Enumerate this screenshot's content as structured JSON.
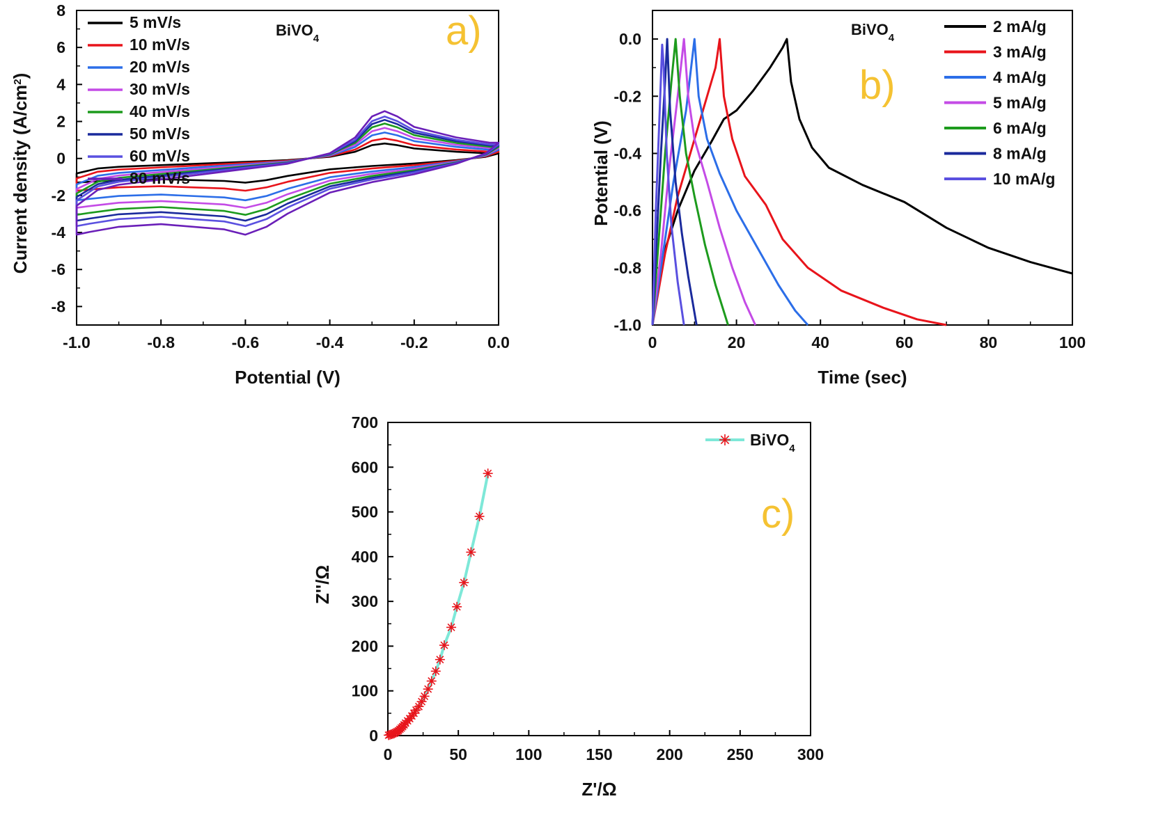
{
  "chart_data": [
    {
      "panel": "a)",
      "type": "line",
      "material_label": "BiVO",
      "material_sub": "4",
      "xlabel": "Potential (V)",
      "ylabel": "Current density (A/cm",
      "ylabel_sup": "2",
      "ylabel_end": ")",
      "xlim": [
        -1.0,
        0.0
      ],
      "ylim": [
        -9,
        8
      ],
      "xticks": [
        "-1.0",
        "-0.8",
        "-0.6",
        "-0.4",
        "-0.2",
        "0.0"
      ],
      "yticks": [
        "-8",
        "-6",
        "-4",
        "-2",
        "0",
        "2",
        "4",
        "6",
        "8"
      ],
      "legend": "top-left",
      "series": [
        {
          "name": "5 mV/s",
          "color": "#000000",
          "scale": 0.45
        },
        {
          "name": "10 mV/s",
          "color": "#e8141b",
          "scale": 0.6
        },
        {
          "name": "20 mV/s",
          "color": "#2c6ee8",
          "scale": 0.78
        },
        {
          "name": "30 mV/s",
          "color": "#c44be6",
          "scale": 0.92
        },
        {
          "name": "40 mV/s",
          "color": "#1d9b1d",
          "scale": 1.05
        },
        {
          "name": "50 mV/s",
          "color": "#1a2a9c",
          "scale": 1.16
        },
        {
          "name": "60 mV/s",
          "color": "#5a50e0",
          "scale": 1.26
        },
        {
          "name": "80 mV/s",
          "color": "#6a1fb8",
          "scale": 1.42
        }
      ],
      "template_anodic": [
        [
          -1.0,
          -1.8
        ],
        [
          -0.95,
          -1.2
        ],
        [
          -0.9,
          -1.0
        ],
        [
          -0.8,
          -0.8
        ],
        [
          -0.7,
          -0.6
        ],
        [
          -0.6,
          -0.4
        ],
        [
          -0.5,
          -0.2
        ],
        [
          -0.4,
          0.2
        ],
        [
          -0.34,
          0.8
        ],
        [
          -0.3,
          1.6
        ],
        [
          -0.27,
          1.8
        ],
        [
          -0.24,
          1.6
        ],
        [
          -0.2,
          1.2
        ],
        [
          -0.1,
          0.8
        ],
        [
          -0.02,
          0.6
        ],
        [
          0.0,
          0.6
        ]
      ],
      "template_cathodic": [
        [
          0.0,
          0.6
        ],
        [
          -0.03,
          0.2
        ],
        [
          -0.1,
          -0.2
        ],
        [
          -0.2,
          -0.6
        ],
        [
          -0.3,
          -0.9
        ],
        [
          -0.4,
          -1.3
        ],
        [
          -0.5,
          -2.1
        ],
        [
          -0.55,
          -2.6
        ],
        [
          -0.6,
          -2.9
        ],
        [
          -0.65,
          -2.7
        ],
        [
          -0.8,
          -2.5
        ],
        [
          -0.9,
          -2.6
        ],
        [
          -0.97,
          -2.8
        ],
        [
          -1.0,
          -2.9
        ]
      ]
    },
    {
      "panel": "b)",
      "type": "line",
      "material_label": "BiVO",
      "material_sub": "4",
      "xlabel": "Time (sec)",
      "ylabel": "Potential (V)",
      "xlim": [
        0,
        100
      ],
      "ylim": [
        -1.0,
        0.1
      ],
      "xticks": [
        "0",
        "20",
        "40",
        "60",
        "80",
        "100"
      ],
      "yticks": [
        "0.0",
        "-0.2",
        "-0.4",
        "-0.6",
        "-0.8",
        "-1.0"
      ],
      "legend": "top-right",
      "series": [
        {
          "name": "2 mA/g",
          "color": "#000000",
          "points": [
            [
              0,
              -1.0
            ],
            [
              2,
              -0.78
            ],
            [
              6,
              -0.6
            ],
            [
              10,
              -0.46
            ],
            [
              14,
              -0.36
            ],
            [
              17,
              -0.28
            ],
            [
              20,
              -0.25
            ],
            [
              24,
              -0.18
            ],
            [
              28,
              -0.1
            ],
            [
              31,
              -0.03
            ],
            [
              32,
              0.0
            ],
            [
              33,
              -0.15
            ],
            [
              35,
              -0.28
            ],
            [
              38,
              -0.38
            ],
            [
              42,
              -0.45
            ],
            [
              50,
              -0.51
            ],
            [
              60,
              -0.57
            ],
            [
              70,
              -0.66
            ],
            [
              80,
              -0.73
            ],
            [
              90,
              -0.78
            ],
            [
              100,
              -0.82
            ]
          ]
        },
        {
          "name": "3 mA/g",
          "color": "#e8141b",
          "points": [
            [
              0,
              -1.0
            ],
            [
              3,
              -0.75
            ],
            [
              6,
              -0.55
            ],
            [
              9,
              -0.4
            ],
            [
              12,
              -0.25
            ],
            [
              15,
              -0.1
            ],
            [
              16,
              0.0
            ],
            [
              17,
              -0.2
            ],
            [
              19,
              -0.35
            ],
            [
              22,
              -0.48
            ],
            [
              27,
              -0.58
            ],
            [
              31,
              -0.7
            ],
            [
              37,
              -0.8
            ],
            [
              45,
              -0.88
            ],
            [
              55,
              -0.94
            ],
            [
              63,
              -0.98
            ],
            [
              70,
              -1.0
            ]
          ]
        },
        {
          "name": "4 mA/g",
          "color": "#2c6ee8",
          "points": [
            [
              0,
              -1.0
            ],
            [
              2,
              -0.8
            ],
            [
              5,
              -0.5
            ],
            [
              8,
              -0.25
            ],
            [
              10,
              0.0
            ],
            [
              11,
              -0.2
            ],
            [
              13,
              -0.35
            ],
            [
              16,
              -0.47
            ],
            [
              20,
              -0.6
            ],
            [
              25,
              -0.73
            ],
            [
              30,
              -0.86
            ],
            [
              34,
              -0.95
            ],
            [
              37,
              -1.0
            ]
          ]
        },
        {
          "name": "5 mA/g",
          "color": "#c44be6",
          "points": [
            [
              0,
              -1.0
            ],
            [
              2,
              -0.75
            ],
            [
              4,
              -0.45
            ],
            [
              6,
              -0.2
            ],
            [
              7.5,
              0.0
            ],
            [
              8.5,
              -0.2
            ],
            [
              10,
              -0.35
            ],
            [
              13,
              -0.5
            ],
            [
              16,
              -0.66
            ],
            [
              19,
              -0.8
            ],
            [
              22,
              -0.92
            ],
            [
              24.5,
              -1.0
            ]
          ]
        },
        {
          "name": "6 mA/g",
          "color": "#1d9b1d",
          "points": [
            [
              0,
              -1.0
            ],
            [
              1.5,
              -0.7
            ],
            [
              3,
              -0.4
            ],
            [
              4.5,
              -0.15
            ],
            [
              5.5,
              0.0
            ],
            [
              6.5,
              -0.2
            ],
            [
              8,
              -0.4
            ],
            [
              10,
              -0.55
            ],
            [
              12.5,
              -0.72
            ],
            [
              15,
              -0.86
            ],
            [
              18,
              -1.0
            ]
          ]
        },
        {
          "name": "8 mA/g",
          "color": "#1a2a9c",
          "points": [
            [
              0,
              -1.0
            ],
            [
              1,
              -0.7
            ],
            [
              2,
              -0.4
            ],
            [
              3,
              -0.15
            ],
            [
              3.5,
              0.0
            ],
            [
              4.2,
              -0.25
            ],
            [
              5.5,
              -0.5
            ],
            [
              7,
              -0.68
            ],
            [
              8.5,
              -0.83
            ],
            [
              10.5,
              -1.0
            ]
          ]
        },
        {
          "name": "10 mA/g",
          "color": "#5a50e0",
          "points": [
            [
              0,
              -1.0
            ],
            [
              0.8,
              -0.6
            ],
            [
              1.6,
              -0.3
            ],
            [
              2.3,
              -0.02
            ],
            [
              2.6,
              -0.08
            ],
            [
              3.4,
              -0.4
            ],
            [
              4.5,
              -0.65
            ],
            [
              6,
              -0.85
            ],
            [
              7.5,
              -1.0
            ]
          ]
        }
      ]
    },
    {
      "panel": "c)",
      "type": "scatter",
      "xlabel": "Z'/Ω",
      "ylabel": "Z''/Ω",
      "xlim": [
        0,
        300
      ],
      "ylim": [
        0,
        700
      ],
      "xticks": [
        "0",
        "50",
        "100",
        "150",
        "200",
        "250",
        "300"
      ],
      "yticks": [
        "0",
        "100",
        "200",
        "300",
        "400",
        "500",
        "600",
        "700"
      ],
      "legend": "top-right",
      "series": [
        {
          "name": "BiVO",
          "name_sub": "4",
          "line_color": "#7ee8d8",
          "marker_color": "#e8141b",
          "points": [
            [
              0.5,
              1
            ],
            [
              1.5,
              2
            ],
            [
              2.5,
              3
            ],
            [
              3.5,
              4
            ],
            [
              4.5,
              5
            ],
            [
              5.5,
              7
            ],
            [
              6.5,
              9
            ],
            [
              7.5,
              11
            ],
            [
              8.5,
              14
            ],
            [
              9.5,
              17
            ],
            [
              10.5,
              20
            ],
            [
              11.5,
              24
            ],
            [
              12.5,
              28
            ],
            [
              14,
              33
            ],
            [
              15.5,
              38
            ],
            [
              17,
              44
            ],
            [
              18.5,
              50
            ],
            [
              20,
              57
            ],
            [
              22,
              65
            ],
            [
              24,
              76
            ],
            [
              26,
              88
            ],
            [
              28.5,
              104
            ],
            [
              31,
              122
            ],
            [
              34,
              144
            ],
            [
              37,
              170
            ],
            [
              40,
              202
            ],
            [
              45,
              242
            ],
            [
              49,
              288
            ],
            [
              54,
              342
            ],
            [
              59,
              410
            ],
            [
              65,
              490
            ],
            [
              71,
              586
            ]
          ]
        }
      ]
    }
  ]
}
